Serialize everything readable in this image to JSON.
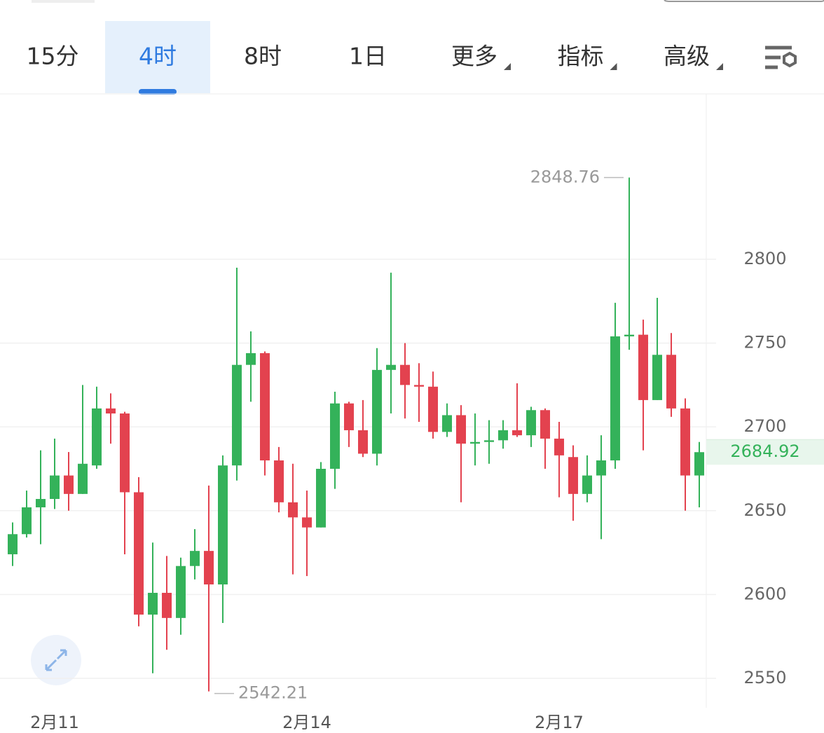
{
  "toolbar": {
    "tabs": [
      "15分",
      "4时",
      "8时",
      "1日"
    ],
    "selected": 1,
    "menus": [
      "更多",
      "指标",
      "高级"
    ]
  },
  "chart_data": {
    "type": "candlestick",
    "categories": [
      null,
      null,
      null,
      "2月11",
      null,
      null,
      null,
      null,
      null,
      null,
      null,
      null,
      null,
      null,
      null,
      null,
      null,
      null,
      null,
      null,
      null,
      "2月14",
      null,
      null,
      null,
      null,
      null,
      null,
      null,
      null,
      null,
      null,
      null,
      null,
      null,
      null,
      null,
      null,
      null,
      "2月17",
      null,
      null,
      null,
      null,
      null,
      null,
      null,
      null,
      null,
      null
    ],
    "open": [
      2624,
      2636,
      2652,
      2657,
      2671,
      2660,
      2677,
      2711,
      2708,
      2661,
      2588,
      2601,
      2586,
      2617,
      2626,
      2606,
      2677,
      2737,
      2744,
      2680,
      2655,
      2646,
      2640,
      2675,
      2714,
      2698,
      2684,
      2734,
      2737,
      2725,
      2724,
      2697,
      2707,
      2690,
      2691,
      2692,
      2698,
      2695,
      2710,
      2693,
      2682,
      2660,
      2671,
      2680,
      2754,
      2755,
      2716,
      2743,
      2711,
      2671
    ],
    "high": [
      2643,
      2662,
      2686,
      2693,
      2685,
      2725,
      2724,
      2720,
      2709,
      2670,
      2631,
      2623,
      2622,
      2639,
      2665,
      2683,
      2795,
      2757,
      2745,
      2688,
      2678,
      2662,
      2679,
      2721,
      2715,
      2716,
      2747,
      2792,
      2750,
      2738,
      2733,
      2714,
      2713,
      2708,
      2704,
      2704,
      2726,
      2712,
      2711,
      2703,
      2689,
      2683,
      2695,
      2774,
      2848.76,
      2764,
      2777,
      2756,
      2717,
      2691
    ],
    "low": [
      2617,
      2634,
      2630,
      2651,
      2650,
      2660,
      2675,
      2690,
      2624,
      2581,
      2553,
      2567,
      2576,
      2609,
      2542.21,
      2583,
      2668,
      2715,
      2671,
      2649,
      2612,
      2611,
      2640,
      2663,
      2688,
      2682,
      2677,
      2708,
      2705,
      2703,
      2693,
      2694,
      2655,
      2677,
      2678,
      2687,
      2694,
      2688,
      2675,
      2658,
      2644,
      2655,
      2633,
      2675,
      2746,
      2686,
      2716,
      2706,
      2650,
      2652
    ],
    "close": [
      2636,
      2652,
      2657,
      2671,
      2660,
      2678,
      2711,
      2708,
      2661,
      2588,
      2601,
      2586,
      2617,
      2626,
      2606,
      2677,
      2737,
      2744,
      2680,
      2655,
      2646,
      2640,
      2675,
      2714,
      2698,
      2684,
      2734,
      2737,
      2725,
      2724,
      2697,
      2707,
      2690,
      2691,
      2692,
      2698,
      2695,
      2710,
      2693,
      2683,
      2660,
      2671,
      2680,
      2754,
      2755,
      2716,
      2743,
      2711,
      2671,
      2684.92
    ],
    "up_color": "#34b25a",
    "down_color": "#e3424f",
    "ylim": [
      2532,
      2898
    ],
    "yticks": [
      2550,
      2600,
      2650,
      2700,
      2750,
      2800
    ],
    "grid": true
  }
}
